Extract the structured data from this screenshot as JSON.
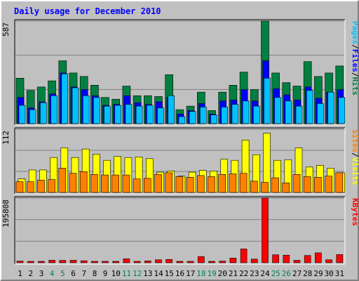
{
  "title": "Daily usage for December 2010",
  "colors": {
    "title": "#0000ff",
    "hits": "#008040",
    "files": "#0000ff",
    "pages": "#00c0ff",
    "visits": "#ffff00",
    "sites": "#ff8000",
    "kbytes": "#ff0000",
    "weekend": "#00805c",
    "weekday": "#000000"
  },
  "legend": {
    "top": [
      {
        "text": "Pages",
        "color": "#00c0ff"
      },
      {
        "text": "/",
        "color": "#000000"
      },
      {
        "text": "Files",
        "color": "#0000ff"
      },
      {
        "text": "/",
        "color": "#000000"
      },
      {
        "text": "Hits",
        "color": "#008040"
      }
    ],
    "middle": [
      {
        "text": "Sites",
        "color": "#ff8000"
      },
      {
        "text": "/",
        "color": "#000000"
      },
      {
        "text": "Visits",
        "color": "#ffff00"
      }
    ],
    "bottom": [
      {
        "text": "KBytes",
        "color": "#ff0000"
      }
    ]
  },
  "chart_data": [
    {
      "type": "bar",
      "panel": "hits-files-pages",
      "ylabel_max": "587",
      "ylim": [
        0,
        587
      ],
      "categories": [
        "1",
        "2",
        "3",
        "4",
        "5",
        "6",
        "7",
        "8",
        "9",
        "10",
        "11",
        "12",
        "13",
        "14",
        "15",
        "16",
        "17",
        "18",
        "19",
        "20",
        "21",
        "22",
        "23",
        "24",
        "25",
        "26",
        "27",
        "28",
        "29",
        "30",
        "31"
      ],
      "series": [
        {
          "name": "Hits",
          "values": [
            260,
            190,
            210,
            245,
            360,
            290,
            270,
            220,
            150,
            140,
            215,
            160,
            160,
            155,
            280,
            80,
            100,
            180,
            75,
            180,
            220,
            295,
            195,
            587,
            290,
            235,
            215,
            355,
            270,
            290,
            330
          ]
        },
        {
          "name": "Files",
          "values": [
            150,
            90,
            125,
            170,
            290,
            210,
            195,
            160,
            105,
            110,
            160,
            120,
            110,
            125,
            150,
            55,
            75,
            115,
            55,
            130,
            135,
            195,
            130,
            360,
            200,
            165,
            135,
            210,
            145,
            180,
            195
          ]
        },
        {
          "name": "Pages",
          "values": [
            105,
            80,
            120,
            160,
            285,
            205,
            160,
            150,
            100,
            105,
            110,
            100,
            105,
            90,
            160,
            40,
            70,
            95,
            50,
            95,
            110,
            130,
            100,
            260,
            150,
            130,
            100,
            190,
            115,
            180,
            150
          ]
        }
      ]
    },
    {
      "type": "bar",
      "panel": "visits-sites",
      "ylabel_max": "112",
      "ylim": [
        0,
        112
      ],
      "categories": [
        "1",
        "2",
        "3",
        "4",
        "5",
        "6",
        "7",
        "8",
        "9",
        "10",
        "11",
        "12",
        "13",
        "14",
        "15",
        "16",
        "17",
        "18",
        "19",
        "20",
        "21",
        "22",
        "23",
        "24",
        "25",
        "26",
        "27",
        "28",
        "29",
        "30",
        "31"
      ],
      "series": [
        {
          "name": "Visits",
          "values": [
            24,
            40,
            40,
            62,
            79,
            62,
            77,
            68,
            57,
            64,
            62,
            63,
            60,
            36,
            38,
            29,
            36,
            39,
            38,
            59,
            57,
            93,
            67,
            105,
            57,
            58,
            79,
            45,
            48,
            43,
            35
          ]
        },
        {
          "name": "Sites",
          "values": [
            19,
            19,
            22,
            23,
            43,
            34,
            37,
            32,
            31,
            31,
            31,
            24,
            25,
            32,
            35,
            28,
            27,
            30,
            28,
            32,
            33,
            34,
            20,
            18,
            26,
            17,
            32,
            28,
            27,
            29,
            35
          ]
        }
      ]
    },
    {
      "type": "bar",
      "panel": "kbytes",
      "ylabel_max": "195808",
      "ylim": [
        0,
        195808
      ],
      "categories": [
        "1",
        "2",
        "3",
        "4",
        "5",
        "6",
        "7",
        "8",
        "9",
        "10",
        "11",
        "12",
        "13",
        "14",
        "15",
        "16",
        "17",
        "18",
        "19",
        "20",
        "21",
        "22",
        "23",
        "24",
        "25",
        "26",
        "27",
        "28",
        "29",
        "30",
        "31"
      ],
      "series": [
        {
          "name": "KBytes",
          "values": [
            5000,
            2500,
            2500,
            7500,
            7000,
            7500,
            6000,
            3000,
            3000,
            4000,
            12000,
            3000,
            5500,
            9000,
            10000,
            3500,
            2500,
            19000,
            2500,
            5000,
            14000,
            42000,
            11000,
            195808,
            24000,
            23000,
            7500,
            22000,
            30000,
            9000,
            25000
          ]
        }
      ]
    }
  ]
}
